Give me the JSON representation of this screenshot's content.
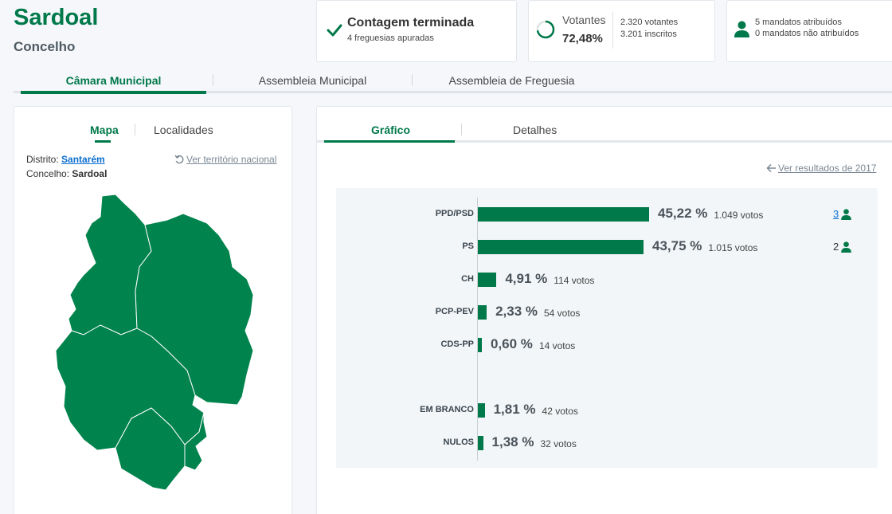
{
  "header": {
    "title": "Sardoal",
    "subtitle": "Concelho"
  },
  "status": {
    "main": "Contagem terminada",
    "sub": "4 freguesias apuradas"
  },
  "turnout": {
    "label": "Votantes",
    "percent": "72,48%",
    "ratio": 0.7248,
    "voters": "2.320 votantes",
    "registered": "3.201 inscritos"
  },
  "mandates": {
    "assigned": "5 mandatos atribuídos",
    "unassigned": "0 mandatos não atribuídos"
  },
  "top_tabs": [
    "Câmara Municipal",
    "Assembleia Municipal",
    "Assembleia de Freguesia"
  ],
  "left": {
    "tabs": [
      "Mapa",
      "Localidades"
    ],
    "distrito_label": "Distrito:",
    "distrito_value": "Santarém",
    "concelho_label": "Concelho:",
    "concelho_value": "Sardoal",
    "ver_nacional": "Ver território nacional"
  },
  "right": {
    "tabs": [
      "Gráfico",
      "Detalhes"
    ],
    "ver_2017": "Ver resultados de 2017"
  },
  "colors": {
    "accent": "#00794a",
    "link": "#0a6ecf"
  },
  "chart_data": {
    "type": "bar",
    "orientation": "horizontal",
    "categories": [
      "PPD/PSD",
      "PS",
      "CH",
      "PCP-PEV",
      "CDS-PP",
      "EM BRANCO",
      "NULOS"
    ],
    "values": [
      45.22,
      43.75,
      4.91,
      2.33,
      0.6,
      1.81,
      1.38
    ],
    "percent_labels": [
      "45,22 %",
      "43,75 %",
      "4,91 %",
      "2,33 %",
      "0,60 %",
      "1,81 %",
      "1,38 %"
    ],
    "vote_labels": [
      "1.049 votos",
      "1.015 votos",
      "114 votos",
      "54 votos",
      "14 votos",
      "42 votos",
      "32 votos"
    ],
    "mandates": [
      "3",
      "2",
      "",
      "",
      "",
      "",
      ""
    ]
  }
}
